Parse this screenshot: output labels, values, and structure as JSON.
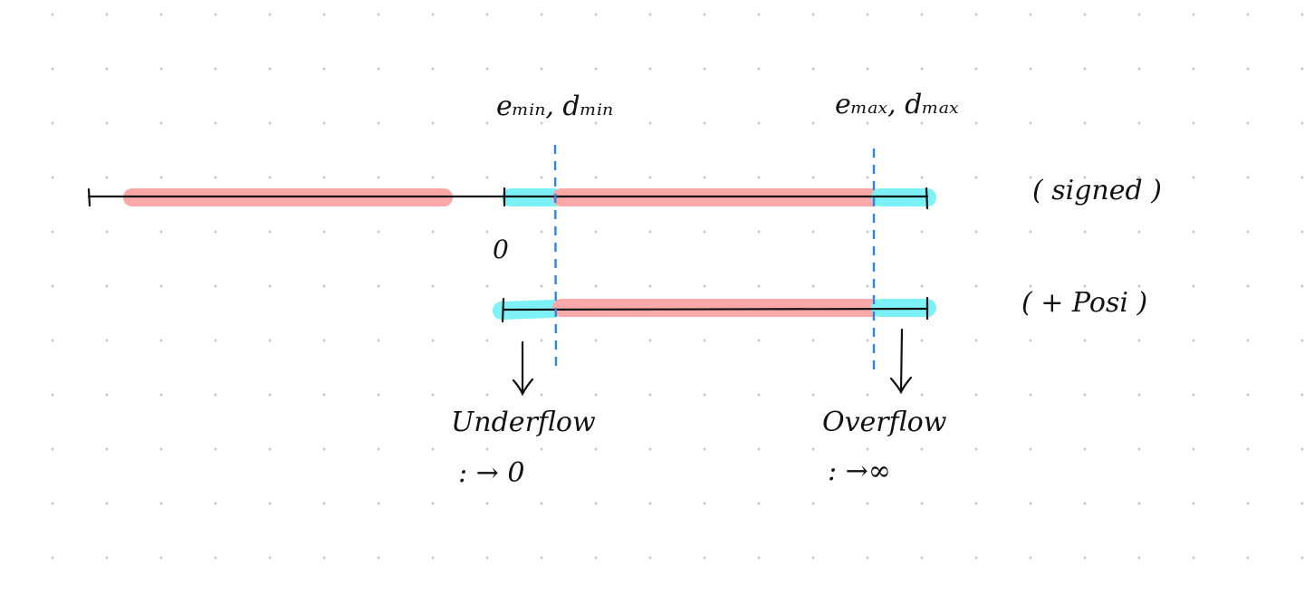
{
  "labels": {
    "emin_dmin": "eₘᵢₙ, dₘᵢₙ",
    "emax_dmax": "eₘₐₓ, dₘₐₓ",
    "signed": "( signed )",
    "zero": "0",
    "positive": "( + Posi )",
    "underflow": "Underflow",
    "overflow": "Overflow",
    "to_zero": ": → 0",
    "to_infinity": ": →∞"
  },
  "colors": {
    "normal_range": "#fba9a8",
    "subnormal_range": "#7cf2f6",
    "threshold_line": "#2f86e0",
    "ink": "#111111"
  }
}
